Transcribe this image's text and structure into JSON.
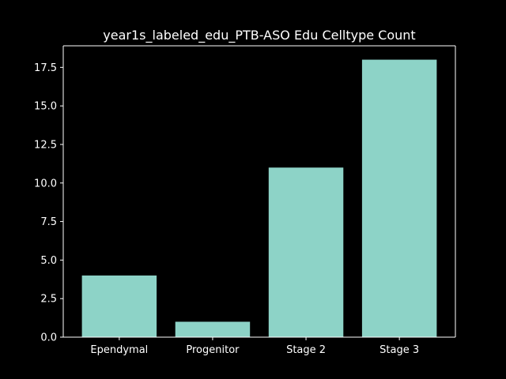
{
  "chart_data": {
    "type": "bar",
    "title": "year1s_labeled_edu_PTB-ASO Edu Celltype Count",
    "xlabel": "",
    "ylabel": "",
    "categories": [
      "Ependymal",
      "Progenitor",
      "Stage 2",
      "Stage 3"
    ],
    "values": [
      4,
      1,
      11,
      18
    ],
    "ylim": [
      0,
      18.9
    ],
    "yticks": [
      0.0,
      2.5,
      5.0,
      7.5,
      10.0,
      12.5,
      15.0,
      17.5
    ],
    "ytick_labels": [
      "0.0",
      "2.5",
      "5.0",
      "7.5",
      "10.0",
      "12.5",
      "15.0",
      "17.5"
    ],
    "grid": false,
    "legend": "none"
  },
  "colors": {
    "background": "#000000",
    "bar": "#8dd3c7",
    "axis": "#ffffff",
    "text": "#ffffff"
  }
}
